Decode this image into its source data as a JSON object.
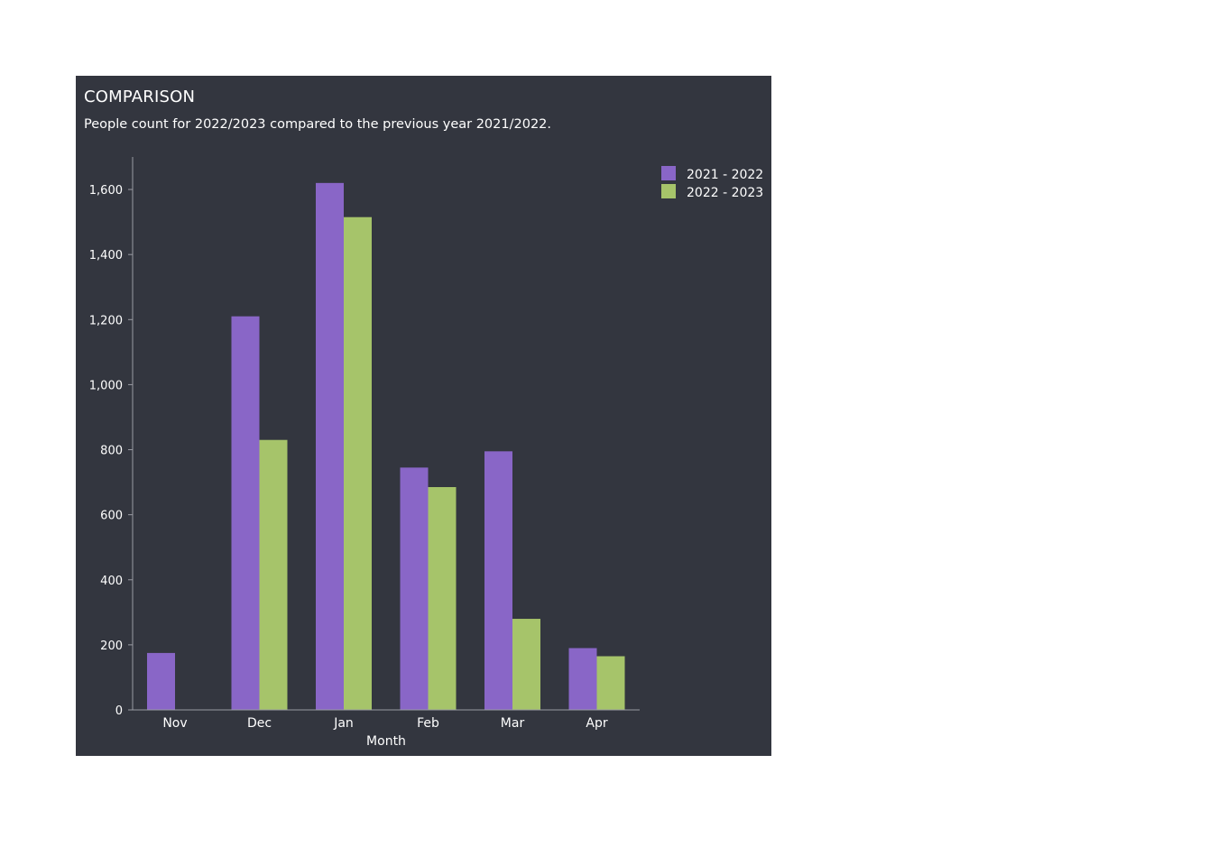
{
  "header": {
    "title": "COMPARISON",
    "subtitle": "People count for 2022/2023 compared to the previous year 2021/2022."
  },
  "chart_data": {
    "type": "bar",
    "xlabel": "Month",
    "ylabel": "",
    "categories": [
      "Nov",
      "Dec",
      "Jan",
      "Feb",
      "Mar",
      "Apr"
    ],
    "ylim": [
      0,
      1700
    ],
    "yticks": [
      0,
      200,
      400,
      600,
      800,
      1000,
      1200,
      1400,
      1600
    ],
    "ytick_labels": [
      "0",
      "200",
      "400",
      "600",
      "800",
      "1,000",
      "1,200",
      "1,400",
      "1,600"
    ],
    "series": [
      {
        "name": "2021 - 2022",
        "color": "#8966c7",
        "values": [
          175,
          1210,
          1620,
          745,
          795,
          190
        ]
      },
      {
        "name": "2022 - 2023",
        "color": "#a6c46a",
        "values": [
          0,
          830,
          1515,
          685,
          280,
          165
        ]
      }
    ],
    "legend_position": "top-right",
    "grid": false
  }
}
